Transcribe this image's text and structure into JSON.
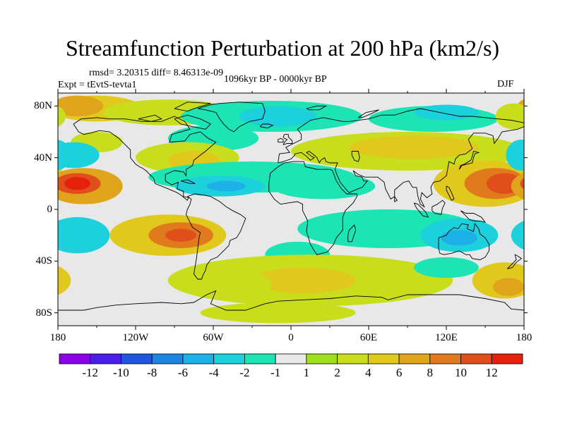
{
  "title": "Streamfunction Perturbation at 200 hPa (km2/s)",
  "stats_line": "rmsd= 3.20315 diff= 8.46313e-09",
  "experiment": "Expt = tEvtS-tevta1",
  "period": "1096kyr BP - 0000kyr BP",
  "season": "DJF",
  "map": {
    "projection": "cylindrical-equidistant",
    "lon_range": [
      -180,
      180
    ],
    "lat_range": [
      -90,
      90
    ],
    "y_ticks": [
      {
        "lat": 80,
        "label": "80N"
      },
      {
        "lat": 40,
        "label": "40N"
      },
      {
        "lat": 0,
        "label": "0"
      },
      {
        "lat": -40,
        "label": "40S"
      },
      {
        "lat": -80,
        "label": "80S"
      }
    ],
    "x_ticks": [
      {
        "lon": -180,
        "label": "180"
      },
      {
        "lon": -120,
        "label": "120W"
      },
      {
        "lon": -60,
        "label": "60W"
      },
      {
        "lon": 0,
        "label": "0"
      },
      {
        "lon": 60,
        "label": "60E"
      },
      {
        "lon": 120,
        "label": "120E"
      },
      {
        "lon": 180,
        "label": "180"
      }
    ],
    "neutral_color": "#e8e8e8",
    "coastline_color": "#000000"
  },
  "colorbar": {
    "colors": [
      "#8b00e6",
      "#4a1ee8",
      "#1f55e0",
      "#1c86e0",
      "#1cb0e6",
      "#1cd0dc",
      "#1ce4b4",
      "#e8e8e8",
      "#9fe01e",
      "#c8de1c",
      "#e0c81c",
      "#e0a41c",
      "#e07a1c",
      "#e04e1c",
      "#e6200c"
    ],
    "labels": [
      "-12",
      "-10",
      "-8",
      "-6",
      "-4",
      "-2",
      "-1",
      "1",
      "2",
      "4",
      "6",
      "8",
      "10",
      "12"
    ]
  },
  "features": [
    {
      "name": "arctic-pacific-positive",
      "lon": -150,
      "lat": 78,
      "rlon": 35,
      "rlat": 10,
      "value": 4
    },
    {
      "name": "arctic-positive-east",
      "lon": -95,
      "lat": 75,
      "rlon": 50,
      "rlat": 10,
      "value": 2
    },
    {
      "name": "arctic-positive-west",
      "lon": -165,
      "lat": 80,
      "rlon": 20,
      "rlat": 8,
      "value": 6
    },
    {
      "name": "north-pacific-positive",
      "lon": -150,
      "lat": 52,
      "rlon": 20,
      "rlat": 8,
      "value": 2
    },
    {
      "name": "north-pole-negative",
      "lon": -15,
      "lat": 72,
      "rlon": 70,
      "rlat": 12,
      "value": -2
    },
    {
      "name": "north-pole-core-negative",
      "lon": -10,
      "lat": 72,
      "rlon": 30,
      "rlat": 8,
      "value": -4
    },
    {
      "name": "central-asia-negative",
      "lon": 110,
      "lat": 70,
      "rlon": 50,
      "rlat": 10,
      "value": -2
    },
    {
      "name": "east-asia-core-negative",
      "lon": 120,
      "lat": 75,
      "rlon": 25,
      "rlat": 6,
      "value": -4
    },
    {
      "name": "far-east-positive",
      "lon": 172,
      "lat": 72,
      "rlon": 14,
      "rlat": 10,
      "value": 2
    },
    {
      "name": "north-atlantic-band-negative",
      "lon": -60,
      "lat": 55,
      "rlon": 35,
      "rlat": 10,
      "value": -2
    },
    {
      "name": "pacific-west-negative",
      "lon": -168,
      "lat": 42,
      "rlon": 20,
      "rlat": 10,
      "value": -4
    },
    {
      "name": "north-america-positive",
      "lon": -80,
      "lat": 40,
      "rlon": 40,
      "rlat": 12,
      "value": 2
    },
    {
      "name": "north-america-core-positive",
      "lon": -75,
      "lat": 38,
      "rlon": 20,
      "rlat": 7,
      "value": 4
    },
    {
      "name": "eurasia-positive",
      "lon": 90,
      "lat": 45,
      "rlon": 90,
      "rlat": 15,
      "value": 2
    },
    {
      "name": "eurasia-core-positive",
      "lon": 95,
      "lat": 48,
      "rlon": 50,
      "rlat": 9,
      "value": 4
    },
    {
      "name": "west-pacific-positive",
      "lon": 150,
      "lat": 20,
      "rlon": 40,
      "rlat": 18,
      "value": 4
    },
    {
      "name": "west-pacific-core-positive",
      "lon": 158,
      "lat": 20,
      "rlon": 24,
      "rlat": 12,
      "value": 8
    },
    {
      "name": "west-pacific-max-positive",
      "lon": 165,
      "lat": 20,
      "rlon": 14,
      "rlat": 8,
      "value": 10
    },
    {
      "name": "east-edge-negative",
      "lon": 178,
      "lat": 42,
      "rlon": 12,
      "rlat": 12,
      "value": -4
    },
    {
      "name": "tropical-negative-band",
      "lon": -30,
      "lat": 25,
      "rlon": 80,
      "rlat": 12,
      "value": -2
    },
    {
      "name": "atlantic-negative-core",
      "lon": -55,
      "lat": 18,
      "rlon": 35,
      "rlat": 8,
      "value": -4
    },
    {
      "name": "atlantic-negative-max",
      "lon": -50,
      "lat": 18,
      "rlon": 15,
      "rlat": 4,
      "value": -6
    },
    {
      "name": "africa-negative",
      "lon": 25,
      "lat": 18,
      "rlon": 40,
      "rlat": 10,
      "value": -2
    },
    {
      "name": "eastern-pacific-positive",
      "lon": -160,
      "lat": 18,
      "rlon": 30,
      "rlat": 14,
      "value": 6
    },
    {
      "name": "eastern-pacific-max",
      "lon": -165,
      "lat": 20,
      "rlon": 18,
      "rlat": 8,
      "value": 10
    },
    {
      "name": "eastern-pacific-peak",
      "lon": -165,
      "lat": 20,
      "rlon": 10,
      "rlat": 5,
      "value": 12
    },
    {
      "name": "south-pacific-negative-west",
      "lon": -165,
      "lat": -20,
      "rlon": 25,
      "rlat": 14,
      "value": -4
    },
    {
      "name": "south-pacific-positive",
      "lon": -95,
      "lat": -20,
      "rlon": 45,
      "rlat": 16,
      "value": 4
    },
    {
      "name": "south-pacific-core-positive",
      "lon": -85,
      "lat": -20,
      "rlon": 25,
      "rlat": 10,
      "value": 8
    },
    {
      "name": "south-pacific-max-positive",
      "lon": -85,
      "lat": -20,
      "rlon": 12,
      "rlat": 5,
      "value": 10
    },
    {
      "name": "indian-ocean-negative",
      "lon": 75,
      "lat": -15,
      "rlon": 70,
      "rlat": 15,
      "value": -2
    },
    {
      "name": "australia-negative",
      "lon": 130,
      "lat": -20,
      "rlon": 30,
      "rlat": 13,
      "value": -4
    },
    {
      "name": "australia-core-negative",
      "lon": 130,
      "lat": -22,
      "rlon": 14,
      "rlat": 6,
      "value": -6
    },
    {
      "name": "africa-south-negative",
      "lon": 5,
      "lat": -35,
      "rlon": 25,
      "rlat": 10,
      "value": -2
    },
    {
      "name": "southern-positive-band",
      "lon": 15,
      "lat": -55,
      "rlon": 110,
      "rlat": 20,
      "value": 2
    },
    {
      "name": "southern-core-positive",
      "lon": 10,
      "lat": -55,
      "rlon": 40,
      "rlat": 10,
      "value": 4
    },
    {
      "name": "southern-pacific-positive",
      "lon": -50,
      "lat": -58,
      "rlon": 35,
      "rlat": 12,
      "value": 2
    },
    {
      "name": "southeast-pacific-positive",
      "lon": 165,
      "lat": -55,
      "rlon": 25,
      "rlat": 14,
      "value": 4
    },
    {
      "name": "southeast-pacific-core",
      "lon": 168,
      "lat": -60,
      "rlon": 12,
      "rlat": 7,
      "value": 6
    },
    {
      "name": "southeast-negative",
      "lon": 120,
      "lat": -45,
      "rlon": 25,
      "rlat": 8,
      "value": -2
    },
    {
      "name": "antarctic-south-positive",
      "lon": -10,
      "lat": -80,
      "rlon": 60,
      "rlat": 8,
      "value": 2
    }
  ]
}
